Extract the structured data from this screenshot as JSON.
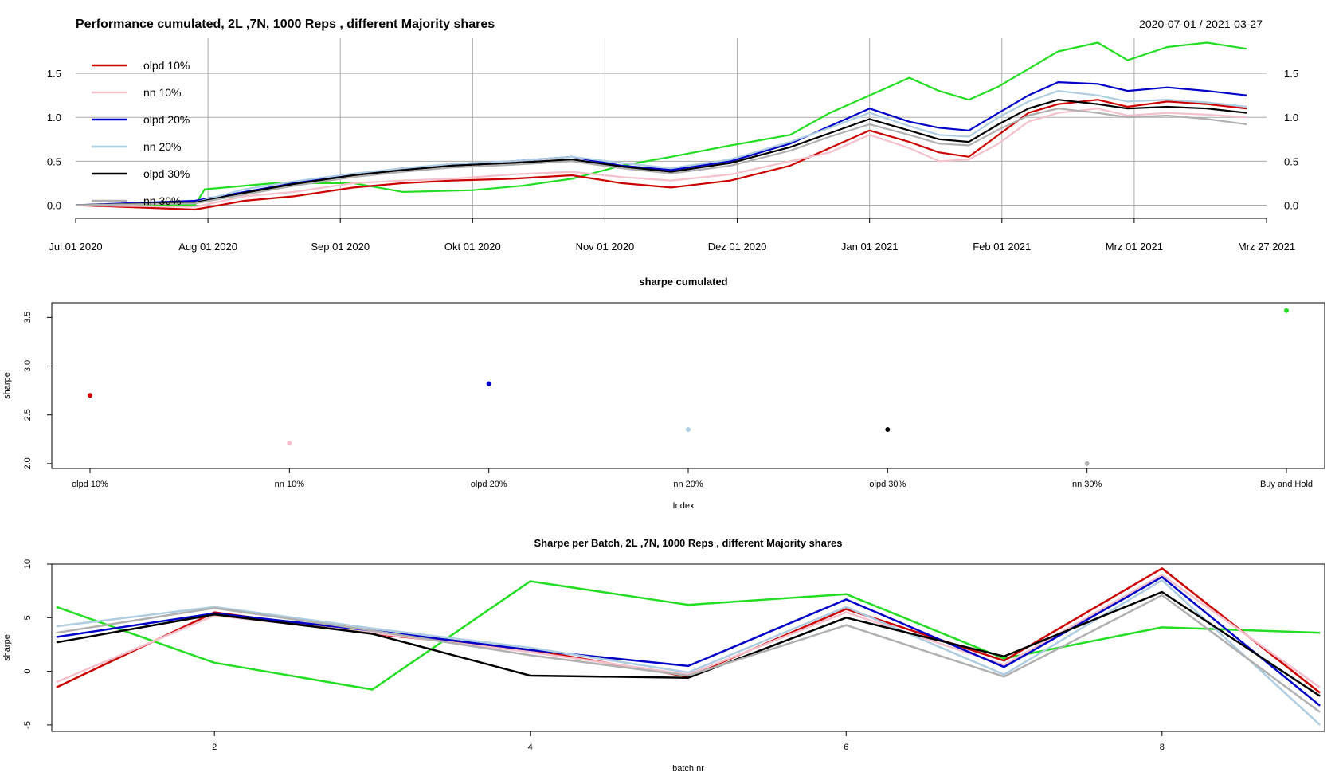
{
  "panels": {
    "top": {
      "title": "Performance cumulated,  2L ,7N,  1000  Reps , different Majority shares",
      "date_range": "2020-07-01 / 2021-03-27"
    },
    "middle": {
      "title": "sharpe cumulated"
    },
    "bottom": {
      "title": "Sharpe per Batch,  2L ,7N,  1000  Reps , different Majority shares"
    }
  },
  "legend": [
    {
      "label": "olpd 10%",
      "color": "#cc0000"
    },
    {
      "label": "nn 10%",
      "color": "#f4c0cb"
    },
    {
      "label": "olpd 20%",
      "color": "#0000c8"
    },
    {
      "label": "nn 20%",
      "color": "#aecde0"
    },
    {
      "label": "olpd 30%",
      "color": "#000000"
    },
    {
      "label": "nn 30%",
      "color": "#b0b0b0"
    }
  ],
  "chart_data": [
    {
      "type": "line",
      "title": "Performance cumulated,  2L ,7N,  1000  Reps , different Majority shares",
      "subtitle": "2020-07-01 / 2021-03-27",
      "x_ticks": [
        "Jul 01 2020",
        "Aug 01 2020",
        "Sep 01 2020",
        "Okt 01 2020",
        "Nov 01 2020",
        "Dez 01 2020",
        "Jan 01 2021",
        "Feb 01 2021",
        "Mrz 01 2021",
        "Mrz 27 2021"
      ],
      "y_ticks": [
        "0.0",
        "0.5",
        "1.0",
        "1.5"
      ],
      "ylim": [
        -0.15,
        1.9
      ],
      "grid": true,
      "legend_position": "top-left",
      "series": [
        {
          "name": "Buy and Hold (green, unlabeled)",
          "color": "#22dd22",
          "points": [
            [
              0,
              0
            ],
            [
              0.12,
              0.0
            ],
            [
              0.13,
              0.18
            ],
            [
              0.2,
              0.25
            ],
            [
              0.28,
              0.25
            ],
            [
              0.33,
              0.15
            ],
            [
              0.4,
              0.17
            ],
            [
              0.45,
              0.22
            ],
            [
              0.5,
              0.3
            ],
            [
              0.55,
              0.45
            ],
            [
              0.6,
              0.55
            ],
            [
              0.66,
              0.68
            ],
            [
              0.72,
              0.8
            ],
            [
              0.76,
              1.05
            ],
            [
              0.8,
              1.25
            ],
            [
              0.84,
              1.45
            ],
            [
              0.87,
              1.3
            ],
            [
              0.9,
              1.2
            ],
            [
              0.93,
              1.35
            ],
            [
              0.96,
              1.55
            ],
            [
              0.99,
              1.75
            ],
            [
              1.03,
              1.85
            ],
            [
              1.06,
              1.65
            ],
            [
              1.1,
              1.8
            ],
            [
              1.14,
              1.85
            ],
            [
              1.18,
              1.78
            ]
          ]
        },
        {
          "name": "olpd 10%",
          "color": "#cc0000",
          "points": [
            [
              0,
              0
            ],
            [
              0.12,
              -0.05
            ],
            [
              0.17,
              0.05
            ],
            [
              0.22,
              0.1
            ],
            [
              0.28,
              0.2
            ],
            [
              0.33,
              0.25
            ],
            [
              0.38,
              0.28
            ],
            [
              0.44,
              0.3
            ],
            [
              0.5,
              0.34
            ],
            [
              0.55,
              0.25
            ],
            [
              0.6,
              0.2
            ],
            [
              0.66,
              0.28
            ],
            [
              0.72,
              0.45
            ],
            [
              0.76,
              0.65
            ],
            [
              0.8,
              0.85
            ],
            [
              0.84,
              0.72
            ],
            [
              0.87,
              0.6
            ],
            [
              0.9,
              0.55
            ],
            [
              0.93,
              0.8
            ],
            [
              0.96,
              1.05
            ],
            [
              0.99,
              1.15
            ],
            [
              1.03,
              1.2
            ],
            [
              1.06,
              1.12
            ],
            [
              1.1,
              1.18
            ],
            [
              1.14,
              1.15
            ],
            [
              1.18,
              1.1
            ]
          ]
        },
        {
          "name": "nn 10%",
          "color": "#f4c0cb",
          "points": [
            [
              0,
              0
            ],
            [
              0.12,
              -0.02
            ],
            [
              0.17,
              0.1
            ],
            [
              0.22,
              0.15
            ],
            [
              0.28,
              0.25
            ],
            [
              0.33,
              0.28
            ],
            [
              0.38,
              0.3
            ],
            [
              0.44,
              0.35
            ],
            [
              0.5,
              0.38
            ],
            [
              0.55,
              0.32
            ],
            [
              0.6,
              0.28
            ],
            [
              0.66,
              0.35
            ],
            [
              0.72,
              0.5
            ],
            [
              0.76,
              0.6
            ],
            [
              0.8,
              0.8
            ],
            [
              0.84,
              0.65
            ],
            [
              0.87,
              0.5
            ],
            [
              0.9,
              0.52
            ],
            [
              0.93,
              0.7
            ],
            [
              0.96,
              0.95
            ],
            [
              0.99,
              1.05
            ],
            [
              1.03,
              1.1
            ],
            [
              1.06,
              1.02
            ],
            [
              1.1,
              1.05
            ],
            [
              1.14,
              1.03
            ],
            [
              1.18,
              1.0
            ]
          ]
        },
        {
          "name": "olpd 20%",
          "color": "#0000c8",
          "points": [
            [
              0,
              0
            ],
            [
              0.12,
              0.05
            ],
            [
              0.17,
              0.15
            ],
            [
              0.22,
              0.25
            ],
            [
              0.28,
              0.35
            ],
            [
              0.33,
              0.42
            ],
            [
              0.38,
              0.46
            ],
            [
              0.44,
              0.5
            ],
            [
              0.5,
              0.55
            ],
            [
              0.55,
              0.45
            ],
            [
              0.6,
              0.4
            ],
            [
              0.66,
              0.5
            ],
            [
              0.72,
              0.7
            ],
            [
              0.76,
              0.9
            ],
            [
              0.8,
              1.1
            ],
            [
              0.84,
              0.95
            ],
            [
              0.87,
              0.88
            ],
            [
              0.9,
              0.85
            ],
            [
              0.93,
              1.05
            ],
            [
              0.96,
              1.25
            ],
            [
              0.99,
              1.4
            ],
            [
              1.03,
              1.38
            ],
            [
              1.06,
              1.3
            ],
            [
              1.1,
              1.34
            ],
            [
              1.14,
              1.3
            ],
            [
              1.18,
              1.25
            ]
          ]
        },
        {
          "name": "nn 20%",
          "color": "#aecde0",
          "points": [
            [
              0,
              0
            ],
            [
              0.12,
              0.03
            ],
            [
              0.17,
              0.18
            ],
            [
              0.22,
              0.27
            ],
            [
              0.28,
              0.36
            ],
            [
              0.33,
              0.42
            ],
            [
              0.38,
              0.47
            ],
            [
              0.44,
              0.5
            ],
            [
              0.5,
              0.55
            ],
            [
              0.55,
              0.48
            ],
            [
              0.6,
              0.42
            ],
            [
              0.66,
              0.52
            ],
            [
              0.72,
              0.72
            ],
            [
              0.76,
              0.88
            ],
            [
              0.8,
              1.05
            ],
            [
              0.84,
              0.9
            ],
            [
              0.87,
              0.8
            ],
            [
              0.9,
              0.78
            ],
            [
              0.93,
              1.0
            ],
            [
              0.96,
              1.18
            ],
            [
              0.99,
              1.3
            ],
            [
              1.03,
              1.25
            ],
            [
              1.06,
              1.18
            ],
            [
              1.1,
              1.2
            ],
            [
              1.14,
              1.17
            ],
            [
              1.18,
              1.12
            ]
          ]
        },
        {
          "name": "olpd 30%",
          "color": "#000000",
          "points": [
            [
              0,
              0
            ],
            [
              0.12,
              0.03
            ],
            [
              0.17,
              0.14
            ],
            [
              0.22,
              0.24
            ],
            [
              0.28,
              0.34
            ],
            [
              0.33,
              0.4
            ],
            [
              0.38,
              0.45
            ],
            [
              0.44,
              0.48
            ],
            [
              0.5,
              0.52
            ],
            [
              0.55,
              0.44
            ],
            [
              0.6,
              0.38
            ],
            [
              0.66,
              0.48
            ],
            [
              0.72,
              0.66
            ],
            [
              0.76,
              0.82
            ],
            [
              0.8,
              0.98
            ],
            [
              0.84,
              0.85
            ],
            [
              0.87,
              0.75
            ],
            [
              0.9,
              0.72
            ],
            [
              0.93,
              0.92
            ],
            [
              0.96,
              1.1
            ],
            [
              0.99,
              1.2
            ],
            [
              1.03,
              1.15
            ],
            [
              1.06,
              1.1
            ],
            [
              1.1,
              1.12
            ],
            [
              1.14,
              1.1
            ],
            [
              1.18,
              1.05
            ]
          ]
        },
        {
          "name": "nn 30%",
          "color": "#b0b0b0",
          "points": [
            [
              0,
              0
            ],
            [
              0.12,
              0.02
            ],
            [
              0.17,
              0.12
            ],
            [
              0.22,
              0.22
            ],
            [
              0.28,
              0.32
            ],
            [
              0.33,
              0.38
            ],
            [
              0.38,
              0.43
            ],
            [
              0.44,
              0.46
            ],
            [
              0.5,
              0.5
            ],
            [
              0.55,
              0.42
            ],
            [
              0.6,
              0.36
            ],
            [
              0.66,
              0.45
            ],
            [
              0.72,
              0.62
            ],
            [
              0.76,
              0.78
            ],
            [
              0.8,
              0.92
            ],
            [
              0.84,
              0.8
            ],
            [
              0.87,
              0.7
            ],
            [
              0.9,
              0.68
            ],
            [
              0.93,
              0.86
            ],
            [
              0.96,
              1.02
            ],
            [
              0.99,
              1.1
            ],
            [
              1.03,
              1.05
            ],
            [
              1.06,
              1.0
            ],
            [
              1.1,
              1.02
            ],
            [
              1.14,
              0.98
            ],
            [
              1.18,
              0.92
            ]
          ]
        }
      ]
    },
    {
      "type": "scatter",
      "title": "sharpe cumulated",
      "xlabel": "Index",
      "ylabel": "sharpe",
      "ylim": [
        1.95,
        3.65
      ],
      "y_ticks": [
        "2.0",
        "2.5",
        "3.0",
        "3.5"
      ],
      "categories": [
        "olpd 10%",
        "nn 10%",
        "olpd 20%",
        "nn 20%",
        "olpd 30%",
        "nn 30%",
        "Buy and Hold"
      ],
      "values": [
        2.7,
        2.21,
        2.82,
        2.35,
        2.35,
        2.0,
        3.57
      ],
      "colors": [
        "#cc0000",
        "#f4c0cb",
        "#0000c8",
        "#aecde0",
        "#000000",
        "#b0b0b0",
        "#22dd22"
      ]
    },
    {
      "type": "line",
      "title": "Sharpe per Batch,  2L ,7N,  1000  Reps , different Majority shares",
      "xlabel": "batch nr",
      "ylabel": "sharpe",
      "xlim": [
        0.97,
        9.03
      ],
      "ylim": [
        -5.6,
        10.0
      ],
      "x_ticks": [
        "2",
        "4",
        "6",
        "8"
      ],
      "y_ticks": [
        "-5",
        "0",
        "5",
        "10"
      ],
      "x": [
        1,
        2,
        3,
        4,
        5,
        6,
        7,
        8,
        9
      ],
      "series": [
        {
          "name": "Buy and Hold",
          "color": "#22dd22",
          "values": [
            6.0,
            0.8,
            -1.7,
            8.4,
            6.2,
            7.2,
            1.2,
            4.1,
            3.6
          ]
        },
        {
          "name": "olpd 10%",
          "color": "#cc0000",
          "values": [
            -1.5,
            5.5,
            3.5,
            2.0,
            -0.5,
            5.8,
            1.0,
            9.6,
            -2.0
          ]
        },
        {
          "name": "nn 10%",
          "color": "#f4c0cb",
          "values": [
            -1.0,
            5.2,
            3.6,
            1.8,
            -0.3,
            5.5,
            0.6,
            9.0,
            -1.5
          ]
        },
        {
          "name": "olpd 20%",
          "color": "#0000c8",
          "values": [
            3.2,
            5.4,
            3.8,
            2.0,
            0.5,
            6.7,
            0.4,
            8.8,
            -3.2
          ]
        },
        {
          "name": "nn 20%",
          "color": "#aecde0",
          "values": [
            4.2,
            6.0,
            4.0,
            2.2,
            -0.1,
            6.0,
            -0.3,
            8.5,
            -5.0
          ]
        },
        {
          "name": "olpd 30%",
          "color": "#000000",
          "values": [
            2.7,
            5.3,
            3.5,
            -0.4,
            -0.6,
            5.0,
            1.4,
            7.4,
            -2.3
          ]
        },
        {
          "name": "nn 30%",
          "color": "#b0b0b0",
          "values": [
            3.6,
            5.9,
            3.8,
            1.5,
            -0.4,
            4.3,
            -0.5,
            7.1,
            -3.8
          ]
        }
      ]
    }
  ]
}
